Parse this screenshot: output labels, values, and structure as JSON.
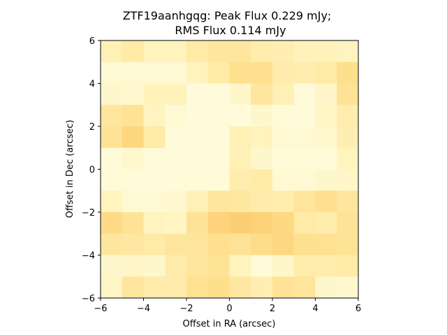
{
  "chart_data": {
    "type": "heatmap",
    "title_line1": "ZTF19aanhgqg: Peak Flux 0.229 mJy;",
    "title_line2": "RMS Flux 0.114 mJy",
    "xlabel": "Offset in RA (arcsec)",
    "ylabel": "Offset in Dec (arcsec)",
    "xlim": [
      -6,
      6
    ],
    "ylim": [
      -6,
      6
    ],
    "xticks": [
      "−6",
      "−4",
      "−2",
      "0",
      "2",
      "4",
      "6"
    ],
    "yticks": [
      "−6",
      "−4",
      "−2",
      "0",
      "2",
      "4",
      "6"
    ],
    "colormap": "YlOrRd-light",
    "pixel_size_arcsec": 1.0,
    "grid": false,
    "values_rows_top_to_bottom": [
      [
        0.35,
        0.45,
        0.3,
        0.3,
        0.45,
        0.5,
        0.5,
        0.4,
        0.38,
        0.32,
        0.32,
        0.28
      ],
      [
        0.15,
        0.15,
        0.15,
        0.15,
        0.3,
        0.45,
        0.6,
        0.6,
        0.42,
        0.4,
        0.45,
        0.62
      ],
      [
        0.2,
        0.18,
        0.32,
        0.32,
        0.1,
        0.1,
        0.22,
        0.5,
        0.35,
        0.12,
        0.22,
        0.55
      ],
      [
        0.5,
        0.55,
        0.28,
        0.15,
        0.1,
        0.1,
        0.1,
        0.2,
        0.12,
        0.12,
        0.25,
        0.4
      ],
      [
        0.55,
        0.75,
        0.45,
        0.12,
        0.1,
        0.1,
        0.35,
        0.3,
        0.15,
        0.15,
        0.18,
        0.38
      ],
      [
        0.12,
        0.18,
        0.12,
        0.12,
        0.12,
        0.12,
        0.35,
        0.2,
        0.12,
        0.12,
        0.12,
        0.3
      ],
      [
        0.12,
        0.12,
        0.12,
        0.12,
        0.12,
        0.12,
        0.4,
        0.45,
        0.15,
        0.15,
        0.2,
        0.22
      ],
      [
        0.3,
        0.15,
        0.15,
        0.18,
        0.35,
        0.5,
        0.48,
        0.42,
        0.4,
        0.52,
        0.6,
        0.5
      ],
      [
        0.68,
        0.55,
        0.3,
        0.25,
        0.55,
        0.78,
        0.85,
        0.82,
        0.7,
        0.45,
        0.4,
        0.55
      ],
      [
        0.5,
        0.48,
        0.45,
        0.5,
        0.52,
        0.6,
        0.55,
        0.65,
        0.72,
        0.6,
        0.58,
        0.55
      ],
      [
        0.2,
        0.22,
        0.2,
        0.42,
        0.5,
        0.55,
        0.3,
        0.12,
        0.22,
        0.4,
        0.4,
        0.45
      ],
      [
        0.25,
        0.5,
        0.42,
        0.42,
        0.58,
        0.62,
        0.48,
        0.38,
        0.55,
        0.52,
        0.2,
        0.18
      ]
    ]
  }
}
